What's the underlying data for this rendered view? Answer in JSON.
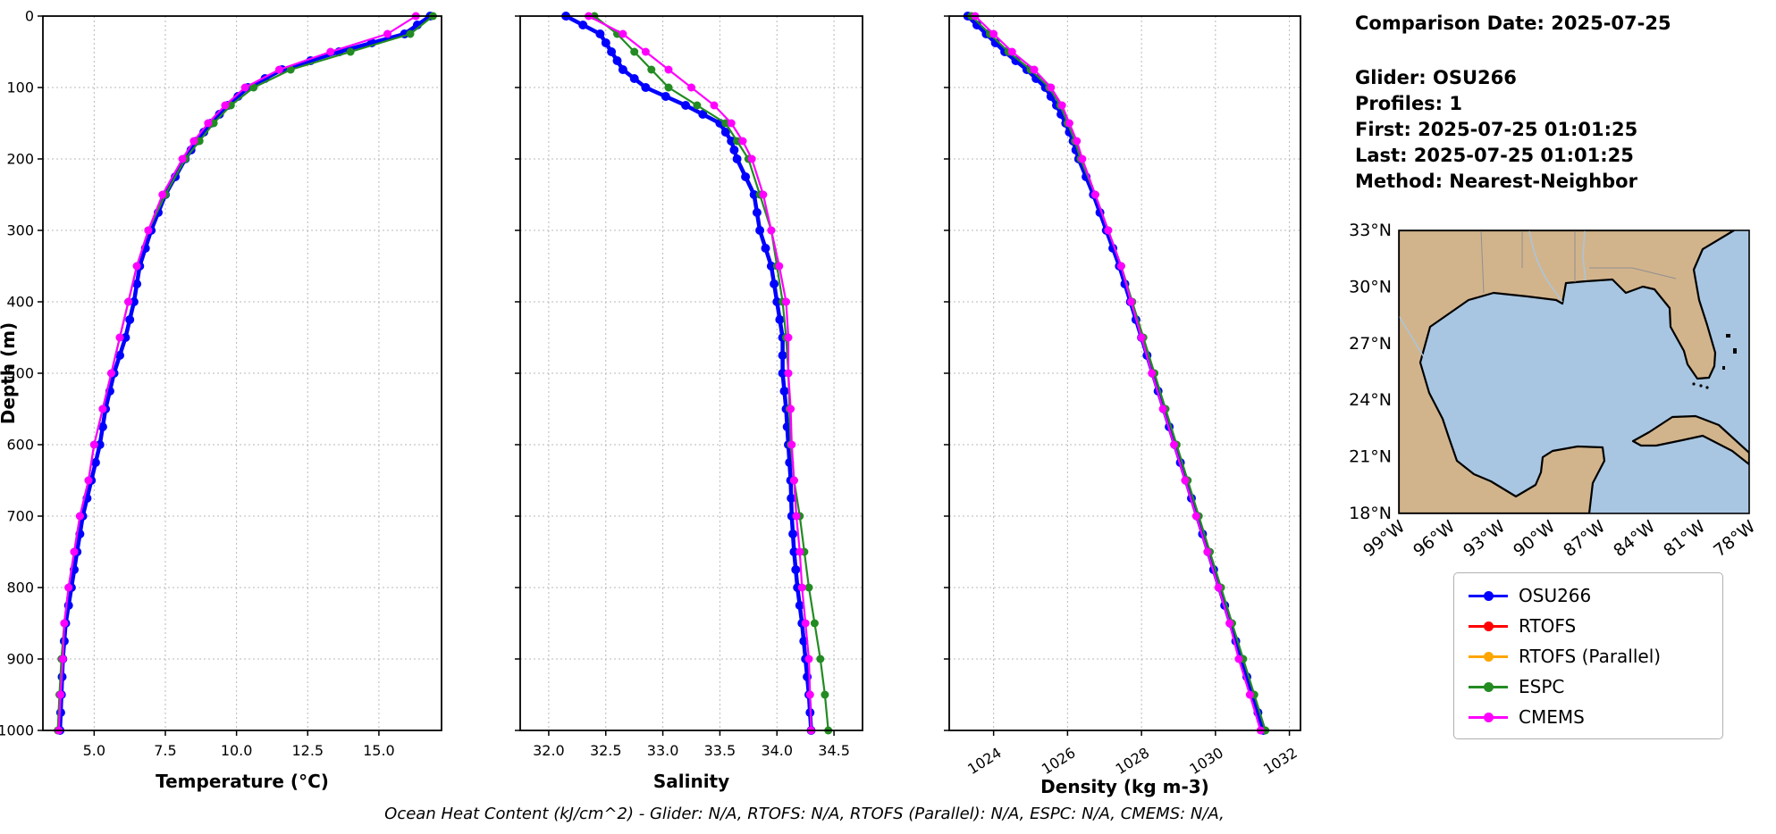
{
  "info_panel": {
    "comparison_date": "Comparison Date: 2025-07-25",
    "glider": "Glider: OSU266",
    "profiles": "Profiles: 1",
    "first": "First: 2025-07-25 01:01:25",
    "last": "Last: 2025-07-25 01:01:25",
    "method": "Method: Nearest-Neighbor"
  },
  "footer_caption": "Ocean Heat Content (kJ/cm^2) - Glider: N/A,  RTOFS: N/A,  RTOFS (Parallel): N/A,  ESPC: N/A,  CMEMS: N/A,",
  "legend": {
    "entries": [
      {
        "label": "OSU266",
        "color": "#0000ff"
      },
      {
        "label": "RTOFS",
        "color": "#ff0000"
      },
      {
        "label": "RTOFS (Parallel)",
        "color": "#ffa500"
      },
      {
        "label": "ESPC",
        "color": "#228b22"
      },
      {
        "label": "CMEMS",
        "color": "#ff00ff"
      }
    ]
  },
  "map": {
    "lat_tick_labels": [
      "33°N",
      "30°N",
      "27°N",
      "24°N",
      "21°N",
      "18°N"
    ],
    "lon_tick_labels": [
      "99°W",
      "96°W",
      "93°W",
      "90°W",
      "87°W",
      "84°W",
      "81°W",
      "78°W"
    ],
    "land_color": "#d2b48c",
    "ocean_color": "#a8c6e2",
    "coastline_color": "#000000"
  },
  "chart_data": [
    {
      "type": "line",
      "title": "",
      "xlabel": "Temperature (°C)",
      "ylabel": "Depth (m)",
      "xlim": [
        3.2,
        17.2
      ],
      "ylim": [
        1000,
        0
      ],
      "grid": true,
      "xticks": [
        5.0,
        7.5,
        10.0,
        12.5,
        15.0
      ],
      "xtick_labels": [
        "5.0",
        "7.5",
        "10.0",
        "12.5",
        "15.0"
      ],
      "yticks": [
        0,
        100,
        200,
        300,
        400,
        500,
        600,
        700,
        800,
        900,
        1000
      ],
      "ytick_labels": [
        "0",
        "100",
        "200",
        "300",
        "400",
        "500",
        "600",
        "700",
        "800",
        "900",
        "1000"
      ],
      "depths": [
        0,
        25,
        50,
        75,
        100,
        125,
        150,
        175,
        200,
        250,
        300,
        350,
        400,
        450,
        500,
        550,
        600,
        650,
        700,
        750,
        800,
        850,
        900,
        950,
        1000
      ],
      "series": [
        {
          "name": "OSU266",
          "color": "#0000ff",
          "values": [
            16.8,
            15.9,
            13.6,
            11.6,
            10.4,
            9.7,
            9.1,
            8.6,
            8.2,
            7.5,
            7.0,
            6.6,
            6.4,
            6.1,
            5.7,
            5.4,
            5.2,
            4.9,
            4.6,
            4.4,
            4.2,
            4.0,
            3.9,
            3.85,
            3.8
          ]
        },
        {
          "name": "RTOFS",
          "color": "#ff0000",
          "values": []
        },
        {
          "name": "RTOFS (Parallel)",
          "color": "#ffa500",
          "values": []
        },
        {
          "name": "ESPC",
          "color": "#228b22",
          "values": [
            16.9,
            16.1,
            14.0,
            11.9,
            10.6,
            9.8,
            9.2,
            8.7,
            8.2,
            7.5,
            6.9,
            6.5,
            6.2,
            5.9,
            5.6,
            5.3,
            5.0,
            4.8,
            4.5,
            4.3,
            4.1,
            3.95,
            3.85,
            3.78,
            3.72
          ]
        },
        {
          "name": "CMEMS",
          "color": "#ff00ff",
          "values": [
            16.3,
            15.3,
            13.3,
            11.5,
            10.3,
            9.6,
            9.0,
            8.5,
            8.1,
            7.4,
            6.9,
            6.5,
            6.2,
            5.9,
            5.6,
            5.3,
            5.0,
            4.8,
            4.5,
            4.3,
            4.1,
            3.95,
            3.9,
            3.82,
            3.76
          ]
        }
      ]
    },
    {
      "type": "line",
      "title": "",
      "xlabel": "Salinity",
      "ylabel": "Depth (m)",
      "xlim": [
        31.75,
        34.75
      ],
      "ylim": [
        1000,
        0
      ],
      "grid": true,
      "xticks": [
        32.0,
        32.5,
        33.0,
        33.5,
        34.0,
        34.5
      ],
      "xtick_labels": [
        "32.0",
        "32.5",
        "33.0",
        "33.5",
        "34.0",
        "34.5"
      ],
      "yticks": [
        0,
        100,
        200,
        300,
        400,
        500,
        600,
        700,
        800,
        900,
        1000
      ],
      "ytick_labels": [
        "0",
        "100",
        "200",
        "300",
        "400",
        "500",
        "600",
        "700",
        "800",
        "900",
        "1000"
      ],
      "depths": [
        0,
        25,
        50,
        75,
        100,
        125,
        150,
        175,
        200,
        250,
        300,
        350,
        400,
        450,
        500,
        550,
        600,
        650,
        700,
        750,
        800,
        850,
        900,
        950,
        1000
      ],
      "series": [
        {
          "name": "OSU266",
          "color": "#0000ff",
          "values": [
            32.15,
            32.45,
            32.55,
            32.65,
            32.85,
            33.2,
            33.5,
            33.6,
            33.65,
            33.8,
            33.85,
            33.95,
            34.0,
            34.05,
            34.05,
            34.08,
            34.1,
            34.12,
            34.13,
            34.15,
            34.18,
            34.22,
            34.25,
            34.28,
            34.3
          ]
        },
        {
          "name": "RTOFS",
          "color": "#ff0000",
          "values": []
        },
        {
          "name": "RTOFS (Parallel)",
          "color": "#ffa500",
          "values": []
        },
        {
          "name": "ESPC",
          "color": "#228b22",
          "values": [
            32.4,
            32.6,
            32.75,
            32.9,
            33.05,
            33.3,
            33.55,
            33.65,
            33.75,
            33.85,
            33.95,
            34.0,
            34.05,
            34.08,
            34.1,
            34.11,
            34.12,
            34.15,
            34.2,
            34.24,
            34.28,
            34.33,
            34.38,
            34.42,
            34.45
          ]
        },
        {
          "name": "CMEMS",
          "color": "#ff00ff",
          "values": [
            32.35,
            32.65,
            32.85,
            33.05,
            33.25,
            33.45,
            33.6,
            33.7,
            33.78,
            33.88,
            33.95,
            34.02,
            34.08,
            34.1,
            34.1,
            34.12,
            34.13,
            34.15,
            34.17,
            34.2,
            34.22,
            34.25,
            34.28,
            34.29,
            34.3
          ]
        }
      ]
    },
    {
      "type": "line",
      "title": "",
      "xlabel": "Density (kg m-3)",
      "ylabel": "Depth (m)",
      "xlim": [
        1022.8,
        1032.3
      ],
      "ylim": [
        1000,
        0
      ],
      "grid": true,
      "xticks": [
        1024,
        1026,
        1028,
        1030,
        1032
      ],
      "xtick_labels": [
        "1024",
        "1026",
        "1028",
        "1030",
        "1032"
      ],
      "xtick_rotation": -32,
      "yticks": [
        0,
        100,
        200,
        300,
        400,
        500,
        600,
        700,
        800,
        900,
        1000
      ],
      "ytick_labels": [
        "0",
        "100",
        "200",
        "300",
        "400",
        "500",
        "600",
        "700",
        "800",
        "900",
        "1000"
      ],
      "depths": [
        0,
        25,
        50,
        75,
        100,
        125,
        150,
        175,
        200,
        250,
        300,
        350,
        400,
        450,
        500,
        550,
        600,
        650,
        700,
        750,
        800,
        850,
        900,
        950,
        1000
      ],
      "series": [
        {
          "name": "OSU266",
          "color": "#0000ff",
          "values": [
            1023.3,
            1023.8,
            1024.3,
            1024.9,
            1025.4,
            1025.7,
            1025.95,
            1026.15,
            1026.3,
            1026.7,
            1027.05,
            1027.4,
            1027.7,
            1028.0,
            1028.3,
            1028.6,
            1028.9,
            1029.2,
            1029.5,
            1029.8,
            1030.1,
            1030.4,
            1030.7,
            1031.0,
            1031.3
          ]
        },
        {
          "name": "RTOFS",
          "color": "#ff0000",
          "values": []
        },
        {
          "name": "RTOFS (Parallel)",
          "color": "#ffa500",
          "values": []
        },
        {
          "name": "ESPC",
          "color": "#228b22",
          "values": [
            1023.4,
            1023.9,
            1024.4,
            1025.0,
            1025.5,
            1025.8,
            1026.0,
            1026.2,
            1026.35,
            1026.75,
            1027.1,
            1027.45,
            1027.75,
            1028.05,
            1028.35,
            1028.65,
            1028.95,
            1029.25,
            1029.55,
            1029.85,
            1030.15,
            1030.45,
            1030.75,
            1031.05,
            1031.35
          ]
        },
        {
          "name": "CMEMS",
          "color": "#ff00ff",
          "values": [
            1023.5,
            1024.0,
            1024.5,
            1025.1,
            1025.55,
            1025.85,
            1026.05,
            1026.25,
            1026.4,
            1026.75,
            1027.1,
            1027.45,
            1027.72,
            1028.0,
            1028.28,
            1028.58,
            1028.88,
            1029.18,
            1029.48,
            1029.78,
            1030.08,
            1030.38,
            1030.63,
            1030.93,
            1031.22
          ]
        }
      ]
    }
  ]
}
